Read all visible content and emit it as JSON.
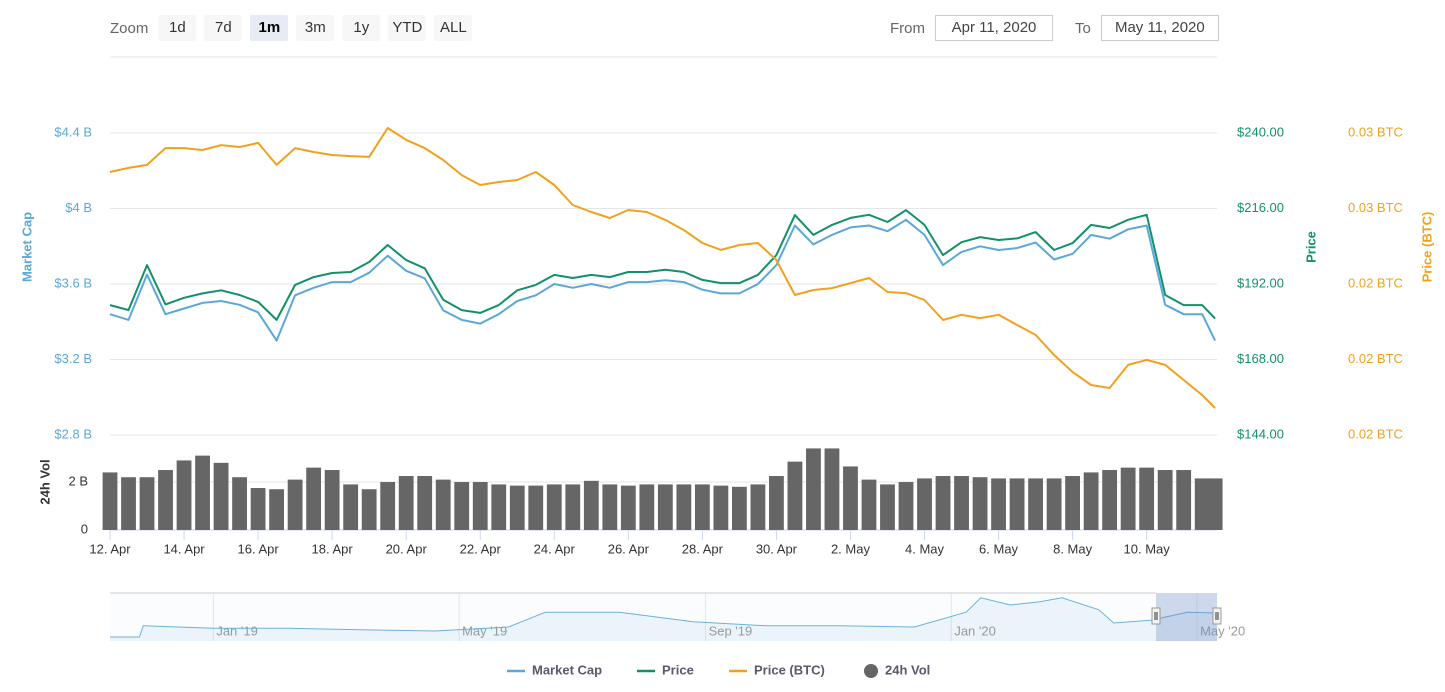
{
  "range_selector": {
    "zoom_label": "Zoom",
    "buttons": [
      "1d",
      "7d",
      "1m",
      "3m",
      "1y",
      "YTD",
      "ALL"
    ],
    "selected": 2,
    "from_label": "From",
    "from_date": "Apr 11, 2020",
    "to_label": "To",
    "to_date": "May 11, 2020"
  },
  "chart_data": {
    "type": "stock",
    "x": [
      12,
      12.5,
      13,
      13.5,
      14,
      14.5,
      15,
      15.5,
      16,
      16.5,
      17,
      17.5,
      18,
      18.5,
      19,
      19.5,
      20,
      20.5,
      21,
      21.5,
      22,
      22.5,
      23,
      23.5,
      24,
      24.5,
      25,
      25.5,
      26,
      26.5,
      27,
      27.5,
      28,
      28.5,
      29,
      29.5,
      30,
      30.5,
      31,
      31.5,
      32,
      32.5,
      33,
      33.5,
      34,
      34.5,
      35,
      35.5,
      36,
      36.5,
      37,
      37.5,
      38,
      38.5,
      39,
      39.5,
      40,
      40.5,
      41,
      41.5,
      41.85
    ],
    "xlim": [
      12,
      41.9
    ],
    "xticks": [
      {
        "value": 12,
        "label": "12. Apr"
      },
      {
        "value": 14,
        "label": "14. Apr"
      },
      {
        "value": 16,
        "label": "16. Apr"
      },
      {
        "value": 18,
        "label": "18. Apr"
      },
      {
        "value": 20,
        "label": "20. Apr"
      },
      {
        "value": 22,
        "label": "22. Apr"
      },
      {
        "value": 24,
        "label": "24. Apr"
      },
      {
        "value": 26,
        "label": "26. Apr"
      },
      {
        "value": 28,
        "label": "28. Apr"
      },
      {
        "value": 30,
        "label": "30. Apr"
      },
      {
        "value": 32,
        "label": "2. May"
      },
      {
        "value": 34,
        "label": "4. May"
      },
      {
        "value": 36,
        "label": "6. May"
      },
      {
        "value": 38,
        "label": "8. May"
      },
      {
        "value": 40,
        "label": "10. May"
      }
    ],
    "y_title": "Market Cap",
    "ylim": [
      2.8,
      4.4
    ],
    "yticks": [
      {
        "value": 2.8,
        "label": "$2.8 B"
      },
      {
        "value": 3.2,
        "label": "$3.2 B"
      },
      {
        "value": 3.6,
        "label": "$3.6 B"
      },
      {
        "value": 4,
        "label": "$4 B"
      },
      {
        "value": 4.4,
        "label": "$4.4 B"
      }
    ],
    "y2_title": "Price",
    "y2lim": [
      144,
      240
    ],
    "y2ticks": [
      {
        "value": 144,
        "label": "$144.00"
      },
      {
        "value": 168,
        "label": "$168.00"
      },
      {
        "value": 192,
        "label": "$192.00"
      },
      {
        "value": 216,
        "label": "$216.00"
      },
      {
        "value": 240,
        "label": "$240.00"
      }
    ],
    "y3_title": "Price (BTC)",
    "y3lim": [
      0.016,
      0.03
    ],
    "y3ticks": [
      {
        "value": 0.016,
        "label": "0.02 BTC"
      },
      {
        "value": 0.0195,
        "label": "0.02 BTC"
      },
      {
        "value": 0.023,
        "label": "0.02 BTC"
      },
      {
        "value": 0.0265,
        "label": "0.03 BTC"
      },
      {
        "value": 0.03,
        "label": "0.03 BTC"
      }
    ],
    "volume_title": "24h Vol",
    "volume_ylim": [
      0,
      3.96
    ],
    "volume_yticks": [
      0,
      {
        "value": 2,
        "label": "2 B"
      }
    ],
    "grid": true,
    "series": [
      {
        "name": "Market Cap",
        "type": "line",
        "axis": "y",
        "color": "#5ba8d8",
        "values": [
          3.44,
          3.41,
          3.65,
          3.44,
          3.47,
          3.5,
          3.51,
          3.49,
          3.45,
          3.3,
          3.54,
          3.58,
          3.61,
          3.61,
          3.66,
          3.75,
          3.67,
          3.63,
          3.46,
          3.41,
          3.39,
          3.44,
          3.51,
          3.54,
          3.6,
          3.58,
          3.6,
          3.58,
          3.61,
          3.61,
          3.62,
          3.61,
          3.57,
          3.55,
          3.55,
          3.6,
          3.7,
          3.91,
          3.81,
          3.86,
          3.9,
          3.91,
          3.88,
          3.94,
          3.86,
          3.7,
          3.77,
          3.8,
          3.78,
          3.79,
          3.82,
          3.73,
          3.76,
          3.86,
          3.84,
          3.89,
          3.91,
          3.49,
          3.44,
          3.44,
          3.3
        ]
      },
      {
        "name": "Price",
        "type": "line",
        "axis": "y2",
        "color": "#13906b",
        "values": [
          185.3,
          183.7,
          198,
          185.5,
          187.6,
          189,
          190,
          188.5,
          186.3,
          180.6,
          191.7,
          194.2,
          195.5,
          195.8,
          199,
          204.4,
          199.6,
          197,
          187,
          183.7,
          182.8,
          185.3,
          190,
          191.7,
          194.9,
          193.9,
          194.9,
          194.2,
          195.8,
          195.8,
          196.5,
          195.8,
          193.3,
          192.3,
          192.3,
          194.9,
          201.2,
          213.9,
          207.6,
          210.8,
          213,
          214,
          211.7,
          215.5,
          210.8,
          201.2,
          205.3,
          206.9,
          206,
          206.5,
          208.5,
          202.8,
          205,
          210.8,
          209.8,
          212.4,
          214,
          188.5,
          185.3,
          185.3,
          181
        ]
      },
      {
        "name": "Price (BTC)",
        "type": "line",
        "axis": "y3",
        "color": "#f2a11c",
        "values": [
          0.02819,
          0.02838,
          0.02852,
          0.0293,
          0.0293,
          0.02921,
          0.02944,
          0.02935,
          0.02954,
          0.02852,
          0.0293,
          0.02912,
          0.02898,
          0.02893,
          0.02889,
          0.03023,
          0.02968,
          0.0293,
          0.02875,
          0.02805,
          0.02759,
          0.02773,
          0.02782,
          0.02819,
          0.02759,
          0.02666,
          0.02634,
          0.02606,
          0.02643,
          0.02634,
          0.02597,
          0.0255,
          0.0249,
          0.02458,
          0.02481,
          0.0249,
          0.02411,
          0.02249,
          0.02272,
          0.02281,
          0.02304,
          0.02328,
          0.02263,
          0.02258,
          0.02226,
          0.02133,
          0.02157,
          0.02142,
          0.02157,
          0.0211,
          0.02064,
          0.01971,
          0.01892,
          0.01832,
          0.01818,
          0.01925,
          0.01948,
          0.01925,
          0.01855,
          0.01785,
          0.01725
        ]
      },
      {
        "name": "24h Vol",
        "type": "column",
        "axis": "volume",
        "color": "#666666",
        "values": [
          2.4,
          2.2,
          2.2,
          2.5,
          2.9,
          3.1,
          2.8,
          2.2,
          1.75,
          1.7,
          2.1,
          2.6,
          2.5,
          1.9,
          1.7,
          2.0,
          2.25,
          2.25,
          2.1,
          2.0,
          2.0,
          1.9,
          1.85,
          1.85,
          1.9,
          1.9,
          2.05,
          1.9,
          1.85,
          1.9,
          1.9,
          1.9,
          1.9,
          1.85,
          1.8,
          1.9,
          2.25,
          2.85,
          3.4,
          3.4,
          2.65,
          2.1,
          1.9,
          2.0,
          2.15,
          2.25,
          2.25,
          2.2,
          2.15,
          2.15,
          2.15,
          2.15,
          2.25,
          2.4,
          2.5,
          2.6,
          2.6,
          2.5,
          2.5,
          2.15,
          2.15
        ]
      }
    ],
    "navigator": {
      "color": "#6db1da",
      "xlim": [
        2018.86,
        2020.36
      ],
      "ylim": [
        0,
        6
      ],
      "xticks": [
        {
          "value": 2019,
          "label": "Jan '19"
        },
        {
          "value": 2019.333,
          "label": "May '19"
        },
        {
          "value": 2019.667,
          "label": "Sep '19"
        },
        {
          "value": 2020,
          "label": "Jan '20"
        },
        {
          "value": 2020.333,
          "label": "May '20"
        }
      ],
      "x": [
        2018.86,
        2018.9,
        2018.905,
        2019.0,
        2019.1,
        2019.2,
        2019.3,
        2019.4,
        2019.45,
        2019.55,
        2019.65,
        2019.75,
        2019.85,
        2019.95,
        2020.02,
        2020.04,
        2020.08,
        2020.12,
        2020.15,
        2020.2,
        2020.22,
        2020.27,
        2020.32,
        2020.36
      ],
      "values": [
        0.5,
        0.5,
        1.9,
        1.6,
        1.6,
        1.4,
        1.25,
        1.75,
        3.6,
        3.6,
        2.4,
        1.9,
        1.9,
        1.75,
        3.6,
        5.4,
        4.5,
        4.9,
        5.4,
        3.9,
        2.25,
        2.6,
        3.6,
        3.5
      ]
    }
  }
}
